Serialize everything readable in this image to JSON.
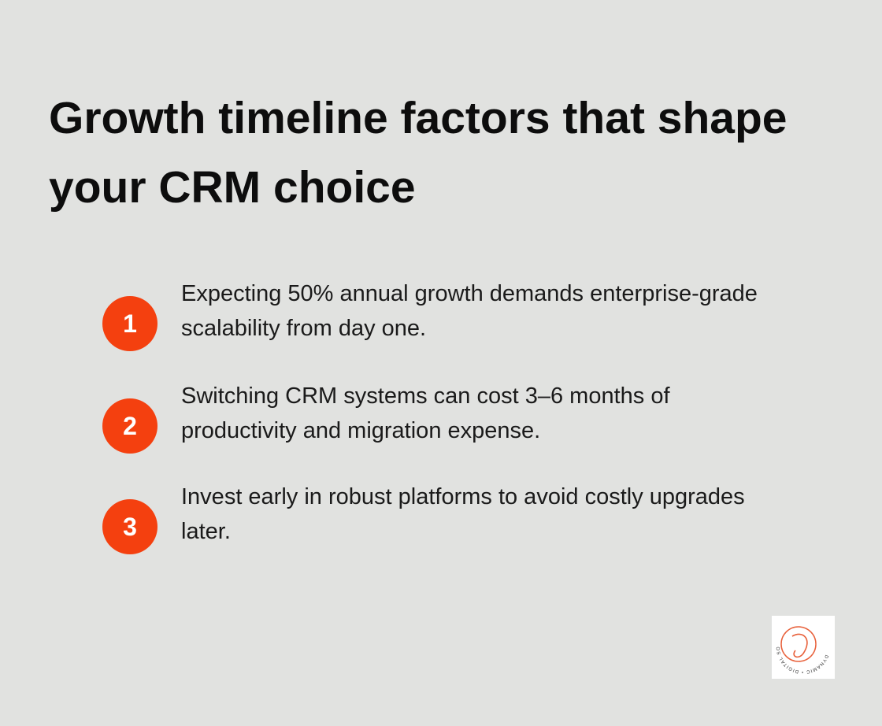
{
  "title": "Growth timeline factors that shape your CRM choice",
  "items": [
    {
      "number": "1",
      "text": "Expecting 50% annual growth demands enterprise-grade scalability from day one."
    },
    {
      "number": "2",
      "text": "Switching CRM systems can cost 3–6 months of productivity and migration expense."
    },
    {
      "number": "3",
      "text": "Invest early in robust platforms to avoid costly upgrades later."
    }
  ],
  "logo": {
    "text": "DYNAMIC • DIGITAL SOLUTIONS"
  }
}
